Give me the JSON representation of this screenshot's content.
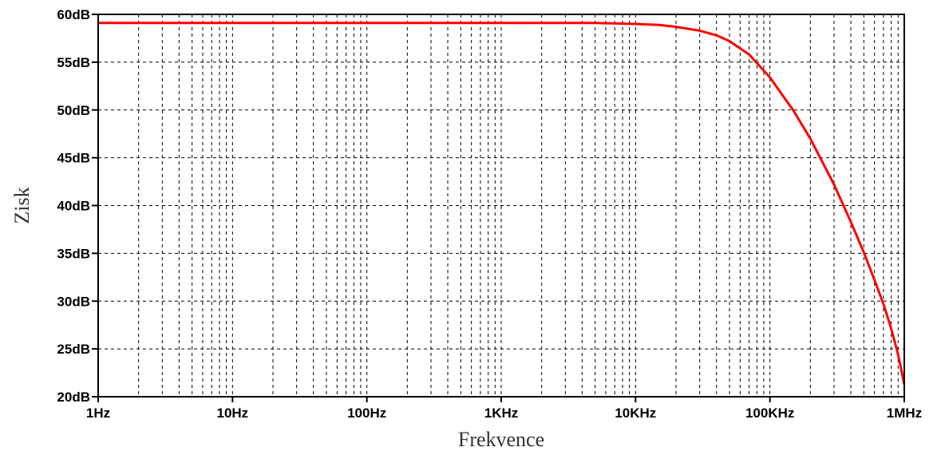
{
  "chart_data": {
    "type": "line",
    "title": "",
    "xlabel": "Frekvence",
    "ylabel": "Zisk",
    "x_scale": "log",
    "xlim": [
      1,
      1000000
    ],
    "ylim": [
      20,
      60
    ],
    "grid": true,
    "x_ticks": [
      {
        "value": 1,
        "label": "1Hz"
      },
      {
        "value": 10,
        "label": "10Hz"
      },
      {
        "value": 100,
        "label": "100Hz"
      },
      {
        "value": 1000,
        "label": "1KHz"
      },
      {
        "value": 10000,
        "label": "10KHz"
      },
      {
        "value": 100000,
        "label": "100KHz"
      },
      {
        "value": 1000000,
        "label": "1MHz"
      }
    ],
    "y_ticks": [
      {
        "value": 60,
        "label": "60dB"
      },
      {
        "value": 55,
        "label": "55dB"
      },
      {
        "value": 50,
        "label": "50dB"
      },
      {
        "value": 45,
        "label": "45dB"
      },
      {
        "value": 40,
        "label": "40dB"
      },
      {
        "value": 35,
        "label": "35dB"
      },
      {
        "value": 30,
        "label": "30dB"
      },
      {
        "value": 25,
        "label": "25dB"
      },
      {
        "value": 20,
        "label": "20dB"
      }
    ],
    "series": [
      {
        "color": "#ff0000",
        "points": [
          [
            1,
            59.1
          ],
          [
            10,
            59.1
          ],
          [
            100,
            59.1
          ],
          [
            1000,
            59.1
          ],
          [
            5000,
            59.1
          ],
          [
            10000,
            59.0
          ],
          [
            15000,
            58.9
          ],
          [
            20000,
            58.7
          ],
          [
            30000,
            58.3
          ],
          [
            40000,
            57.8
          ],
          [
            50000,
            57.2
          ],
          [
            70000,
            55.8
          ],
          [
            100000,
            53.4
          ],
          [
            150000,
            49.9
          ],
          [
            200000,
            47.0
          ],
          [
            300000,
            42.2
          ],
          [
            400000,
            38.3
          ],
          [
            500000,
            35.1
          ],
          [
            600000,
            32.2
          ],
          [
            700000,
            29.7
          ],
          [
            800000,
            27.1
          ],
          [
            900000,
            24.4
          ],
          [
            1000000,
            21.3
          ]
        ]
      }
    ]
  }
}
